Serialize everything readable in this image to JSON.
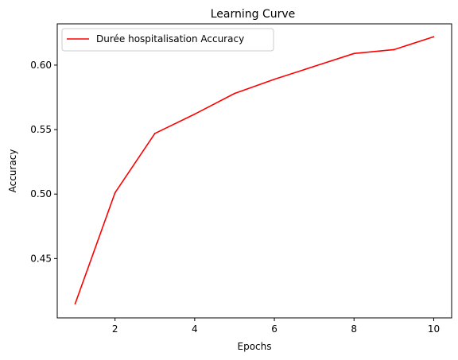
{
  "chart_data": {
    "type": "line",
    "title": "Learning Curve",
    "xlabel": "Epochs",
    "ylabel": "Accuracy",
    "xlim": [
      0.55,
      10.45
    ],
    "ylim": [
      0.404,
      0.632
    ],
    "xticks": [
      2,
      4,
      6,
      8,
      10
    ],
    "xtick_labels": [
      "2",
      "4",
      "6",
      "8",
      "10"
    ],
    "yticks": [
      0.45,
      0.5,
      0.55,
      0.6
    ],
    "ytick_labels": [
      "0.45",
      "0.50",
      "0.55",
      "0.60"
    ],
    "grid": false,
    "legend": "upper-left",
    "series": [
      {
        "name": "Durée hospitalisation Accuracy",
        "color": "#ff0000",
        "x": [
          1,
          2,
          3,
          4,
          5,
          6,
          7,
          8,
          9,
          10
        ],
        "y": [
          0.415,
          0.501,
          0.547,
          0.562,
          0.578,
          0.589,
          0.599,
          0.609,
          0.612,
          0.622
        ]
      }
    ]
  }
}
